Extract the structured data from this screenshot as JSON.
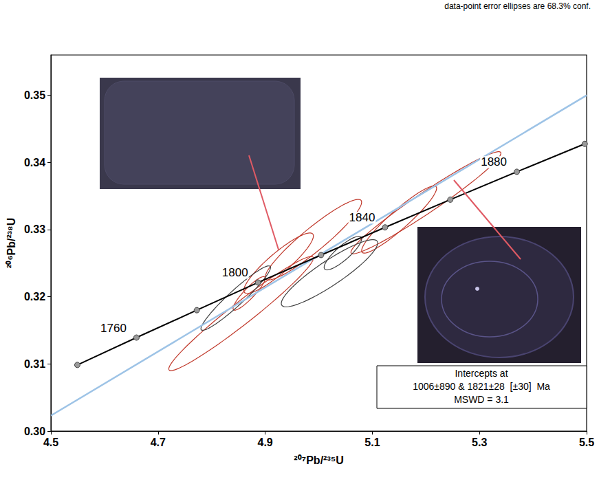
{
  "chart_data": {
    "type": "concordia",
    "title": "data-point error ellipses are 68.3% conf.",
    "x_label": "²⁰⁷Pb/²³⁵U",
    "y_label": "²⁰⁶Pb/²³⁸U",
    "xlim": [
      4.5,
      5.5
    ],
    "xticks": [
      4.5,
      4.7,
      4.9,
      5.1,
      5.3,
      5.5
    ],
    "ylim": [
      0.3,
      0.356
    ],
    "yticks": [
      {
        "value": 0.3,
        "label": "0.30"
      },
      {
        "value": 0.31,
        "label": "0.31"
      },
      {
        "value": 0.32,
        "label": "0.32"
      },
      {
        "value": 0.33,
        "label": "0.33"
      },
      {
        "value": 0.34,
        "label": "0.34"
      },
      {
        "value": 0.35,
        "label": "0.35"
      }
    ],
    "grid": false,
    "series": [
      {
        "type": "line",
        "line_style": "solid",
        "color": "#9dc3e6",
        "x": [
          4.5,
          5.5
        ],
        "values": [
          0.3023,
          0.35
        ]
      },
      {
        "type": "line",
        "line_style": "solid",
        "marker": "circle",
        "color": "#000000",
        "x": [
          4.5493,
          4.6597,
          4.7723,
          4.8866,
          5.0043,
          5.1237,
          5.2455,
          5.3697,
          5.4965
        ],
        "values": [
          0.30985,
          0.31392,
          0.318,
          0.32212,
          0.32621,
          0.33033,
          0.33446,
          0.33861,
          0.34277
        ],
        "point_labels": [
          null,
          "1760",
          null,
          "1800",
          null,
          "1840",
          null,
          "1880",
          null
        ]
      }
    ],
    "ellipses": [
      {
        "x": 4.855,
        "y": 0.3175,
        "sx": 0.135,
        "sy": 0.0085,
        "rho": 0.97,
        "color": "#c0392b"
      },
      {
        "x": 4.87,
        "y": 0.3205,
        "sx": 0.03,
        "sy": 0.0025,
        "rho": 0.9,
        "color": "#c0392b"
      },
      {
        "x": 4.925,
        "y": 0.325,
        "sx": 0.065,
        "sy": 0.0045,
        "rho": 0.9,
        "color": "#c0392b"
      },
      {
        "x": 4.99,
        "y": 0.3285,
        "sx": 0.09,
        "sy": 0.006,
        "rho": 0.93,
        "color": "#c0392b"
      },
      {
        "x": 5.2,
        "y": 0.334,
        "sx": 0.14,
        "sy": 0.0076,
        "rho": 0.97,
        "color": "#c0392b"
      },
      {
        "x": 5.15,
        "y": 0.3315,
        "sx": 0.07,
        "sy": 0.005,
        "rho": 0.93,
        "color": "#c0392b"
      },
      {
        "x": 4.845,
        "y": 0.3198,
        "sx": 0.065,
        "sy": 0.0048,
        "rho": 0.95,
        "color": "#404040"
      },
      {
        "x": 5.02,
        "y": 0.3235,
        "sx": 0.09,
        "sy": 0.005,
        "rho": 0.9,
        "color": "#404040"
      },
      {
        "x": 5.045,
        "y": 0.3265,
        "sx": 0.035,
        "sy": 0.0025,
        "rho": 0.85,
        "color": "#404040"
      }
    ],
    "annotation": [
      "Intercepts at",
      "1006±890 & 1821±28  [±30]  Ma",
      "MSWD = 3.1"
    ]
  }
}
